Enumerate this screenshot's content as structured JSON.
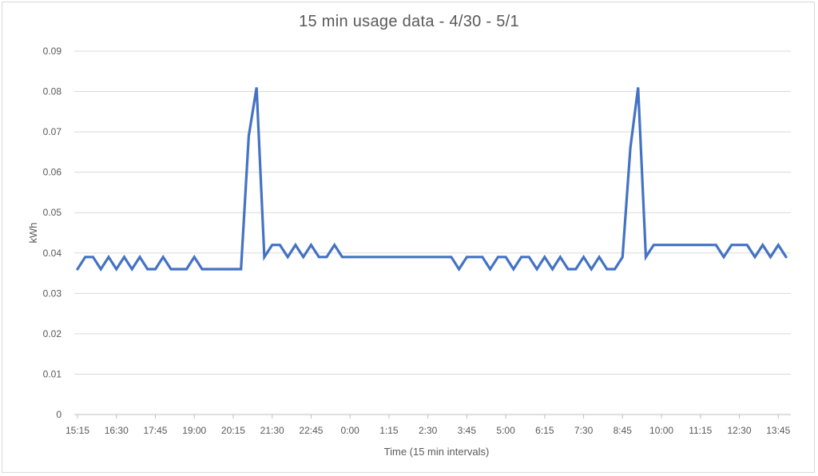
{
  "chart_data": {
    "type": "line",
    "title": "15 min usage data - 4/30 - 5/1",
    "xlabel": "Time (15 min intervals)",
    "ylabel": "kWh",
    "ylim": [
      0,
      0.09
    ],
    "yticks": [
      "0",
      "0.01",
      "0.02",
      "0.03",
      "0.04",
      "0.05",
      "0.06",
      "0.07",
      "0.08",
      "0.09"
    ],
    "grid": true,
    "legend": "none",
    "line_color": "#4472C4",
    "x_tick_labels": [
      "15:15",
      "16:30",
      "17:45",
      "19:00",
      "20:15",
      "21:30",
      "22:45",
      "0:00",
      "1:15",
      "2:30",
      "3:45",
      "5:00",
      "6:15",
      "7:30",
      "8:45",
      "10:00",
      "11:15",
      "12:30",
      "13:45"
    ],
    "x_tick_every": 5,
    "series": [
      {
        "values": [
          0.036,
          0.039,
          0.039,
          0.036,
          0.039,
          0.036,
          0.039,
          0.036,
          0.039,
          0.036,
          0.036,
          0.039,
          0.036,
          0.036,
          0.036,
          0.039,
          0.036,
          0.036,
          0.036,
          0.036,
          0.036,
          0.036,
          0.069,
          0.081,
          0.039,
          0.042,
          0.042,
          0.039,
          0.042,
          0.039,
          0.042,
          0.039,
          0.039,
          0.042,
          0.039,
          0.039,
          0.039,
          0.039,
          0.039,
          0.039,
          0.039,
          0.039,
          0.039,
          0.039,
          0.039,
          0.039,
          0.039,
          0.039,
          0.039,
          0.036,
          0.039,
          0.039,
          0.039,
          0.036,
          0.039,
          0.039,
          0.036,
          0.039,
          0.039,
          0.036,
          0.039,
          0.036,
          0.039,
          0.036,
          0.036,
          0.039,
          0.036,
          0.039,
          0.036,
          0.036,
          0.039,
          0.066,
          0.081,
          0.039,
          0.042,
          0.042,
          0.042,
          0.042,
          0.042,
          0.042,
          0.042,
          0.042,
          0.042,
          0.039,
          0.042,
          0.042,
          0.042,
          0.039,
          0.042,
          0.039,
          0.042,
          0.039
        ]
      }
    ]
  }
}
